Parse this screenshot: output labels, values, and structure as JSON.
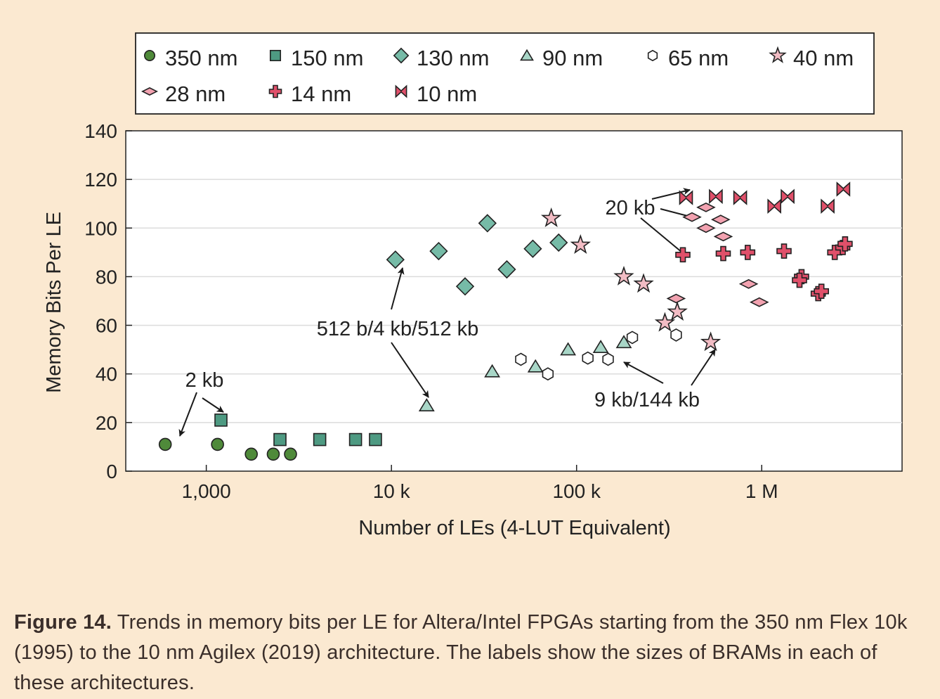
{
  "chart_data": {
    "type": "scatter",
    "title": "",
    "xlabel": "Number of LEs (4-LUT Equivalent)",
    "ylabel": "Memory Bits Per LE",
    "x_scale": "log",
    "xlim": [
      400,
      4000000
    ],
    "ylim": [
      0,
      140
    ],
    "x_ticks": [
      {
        "value": 1000,
        "label": "1,000"
      },
      {
        "value": 10000,
        "label": "10 k"
      },
      {
        "value": 100000,
        "label": "100 k"
      },
      {
        "value": 1000000,
        "label": "1 M"
      }
    ],
    "y_ticks": [
      0,
      20,
      40,
      60,
      80,
      100,
      120,
      140
    ],
    "grid": true,
    "legend_position": "top",
    "series": [
      {
        "name": "350 nm",
        "marker": "circle",
        "color": "#4f8a3a",
        "points": [
          [
            600,
            11
          ],
          [
            1150,
            11
          ],
          [
            1750,
            7
          ],
          [
            2300,
            7
          ],
          [
            2850,
            7
          ]
        ]
      },
      {
        "name": "150 nm",
        "marker": "square",
        "color": "#4e9a82",
        "points": [
          [
            1200,
            21
          ],
          [
            2500,
            13
          ],
          [
            4100,
            13
          ],
          [
            6400,
            13
          ],
          [
            8200,
            13
          ]
        ]
      },
      {
        "name": "130 nm",
        "marker": "diamond",
        "color": "#76bba7",
        "points": [
          [
            10500,
            87
          ],
          [
            18000,
            90.5
          ],
          [
            25000,
            76
          ],
          [
            33000,
            102
          ],
          [
            42000,
            83
          ],
          [
            58000,
            91.5
          ],
          [
            80000,
            94
          ]
        ]
      },
      {
        "name": "90 nm",
        "marker": "triangle",
        "color": "#a8d6c7",
        "points": [
          [
            15500,
            27
          ],
          [
            35000,
            41
          ],
          [
            60000,
            43
          ],
          [
            90000,
            50
          ],
          [
            135000,
            51
          ],
          [
            180000,
            53
          ]
        ]
      },
      {
        "name": "65 nm",
        "marker": "hexagon",
        "color": "#ffffff",
        "points": [
          [
            50000,
            46
          ],
          [
            70000,
            40
          ],
          [
            115000,
            46.5
          ],
          [
            148000,
            46
          ],
          [
            200000,
            55
          ],
          [
            345000,
            56
          ]
        ]
      },
      {
        "name": "40 nm",
        "marker": "star",
        "color": "#f2bcc4",
        "points": [
          [
            73000,
            104
          ],
          [
            105000,
            93
          ],
          [
            180000,
            80
          ],
          [
            230000,
            77
          ],
          [
            300000,
            61
          ],
          [
            350000,
            65.5
          ],
          [
            530000,
            53
          ]
        ]
      },
      {
        "name": "28 nm",
        "marker": "thin-diamond",
        "color": "#f2a2b0",
        "points": [
          [
            345000,
            71
          ],
          [
            420000,
            104.5
          ],
          [
            500000,
            108.5
          ],
          [
            500000,
            100
          ],
          [
            600000,
            103.5
          ],
          [
            620000,
            96.5
          ],
          [
            850000,
            77
          ],
          [
            970000,
            69.5
          ]
        ]
      },
      {
        "name": "14 nm",
        "marker": "cross",
        "color": "#e0506a",
        "points": [
          [
            375000,
            89
          ],
          [
            620000,
            89.5
          ],
          [
            840000,
            90
          ],
          [
            1320000,
            90.5
          ],
          [
            1640000,
            80
          ],
          [
            1600000,
            78.5
          ],
          [
            2020000,
            73
          ],
          [
            2100000,
            74
          ],
          [
            2480000,
            90
          ],
          [
            2740000,
            92
          ],
          [
            2820000,
            93.5
          ]
        ]
      },
      {
        "name": "10 nm",
        "marker": "bowtie",
        "color": "#e0506a",
        "points": [
          [
            390000,
            112.5
          ],
          [
            565000,
            113
          ],
          [
            765000,
            112.5
          ],
          [
            1170000,
            109
          ],
          [
            1380000,
            113
          ],
          [
            2270000,
            109
          ],
          [
            2760000,
            116
          ]
        ]
      }
    ],
    "annotations": [
      {
        "text": "2 kb"
      },
      {
        "text": "512 b/4 kb/512 kb"
      },
      {
        "text": "20 kb"
      },
      {
        "text": "9 kb/144 kb"
      }
    ]
  },
  "caption": {
    "label": "Figure 14.",
    "text": " Trends in memory bits per LE for Altera/Intel FPGAs starting from the 350 nm Flex 10k (1995) to the 10 nm Agilex (2019) architecture. The labels show the sizes of BRAMs in each of these architectures."
  }
}
